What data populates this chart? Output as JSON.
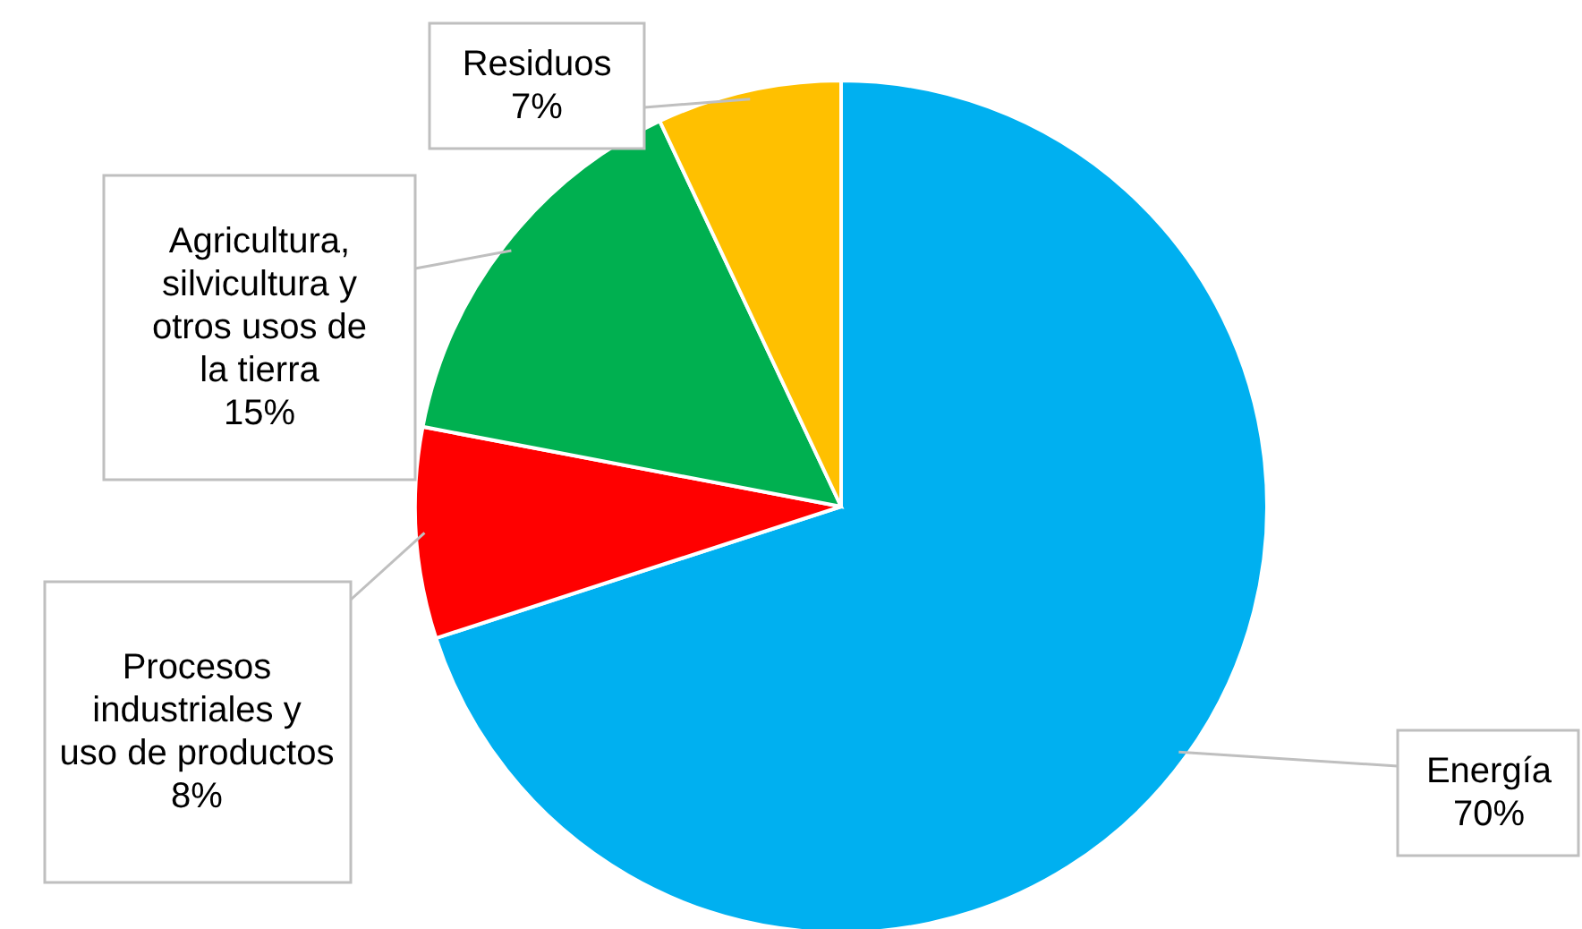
{
  "chart_data": {
    "type": "pie",
    "categories": [
      "Energía",
      "Procesos industriales y uso de productos",
      "Agricultura, silvicultura y otros usos de la tierra",
      "Residuos"
    ],
    "values": [
      70,
      8,
      15,
      7
    ],
    "value_labels": [
      "70%",
      "8%",
      "15%",
      "7%"
    ],
    "colors": [
      "#00b0f0",
      "#ff0000",
      "#00b050",
      "#ffc000"
    ]
  }
}
